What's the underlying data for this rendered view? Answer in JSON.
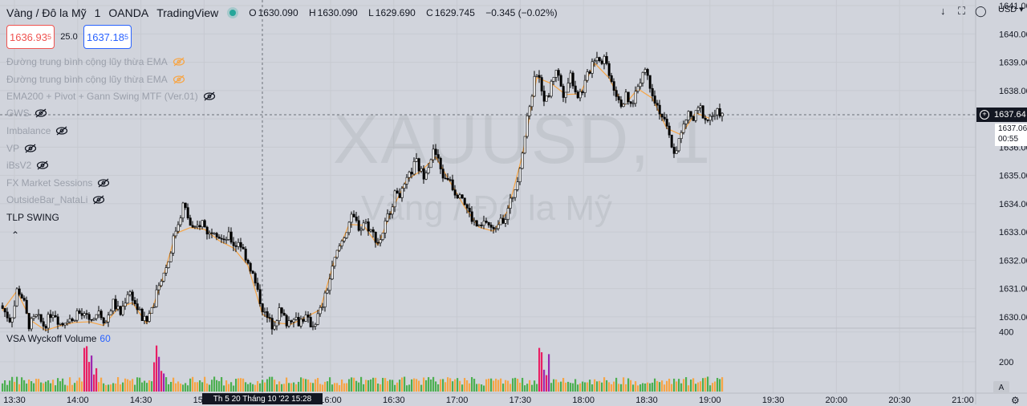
{
  "header": {
    "symbol": "Vàng / Đô la Mỹ",
    "interval": "1",
    "broker": "OANDA",
    "platform": "TradingView",
    "ohlc": {
      "o_label": "O",
      "o": "1630.090",
      "h_label": "H",
      "h": "1630.090",
      "l_label": "L",
      "l": "1629.690",
      "c_label": "C",
      "c": "1629.745",
      "change": "−0.345 (−0.02%)"
    }
  },
  "trade": {
    "sell_main": "1636.93",
    "sell_sup": "5",
    "spread": "25.0",
    "buy_main": "1637.18",
    "buy_sup": "5"
  },
  "indicators": [
    {
      "label": "Đường trung bình cộng lũy thừa EMA",
      "style": "orange-eye"
    },
    {
      "label": "Đường trung bình cộng lũy thừa EMA",
      "style": "orange-eye"
    },
    {
      "label": "EMA200 + Pivot + Gann Swing MTF (Ver.01)",
      "style": "hidden"
    },
    {
      "label": "GWS",
      "style": "hidden"
    },
    {
      "label": "Imbalance",
      "style": "hidden"
    },
    {
      "label": "VP",
      "style": "hidden"
    },
    {
      "label": "iBsV2",
      "style": "hidden"
    },
    {
      "label": "FX Market Sessions",
      "style": "hidden"
    },
    {
      "label": "OutsideBar_NataLi",
      "style": "hidden"
    },
    {
      "label": "TLP SWING",
      "style": "active"
    }
  ],
  "collapse_icon": "chevron-up-icon",
  "watermark": {
    "line1": "XAUUSD, 1",
    "line2": "Vàng / Đô la Mỹ"
  },
  "volume_pane": {
    "name": "VSA Wyckoff Volume",
    "length": "60",
    "axis_labels": [
      "400",
      "200"
    ]
  },
  "price_axis": {
    "currency": "USD",
    "labels": [
      "1641.00",
      "1640.00",
      "1639.00",
      "1638.00",
      "1637.00",
      "1636.00",
      "1635.00",
      "1634.00",
      "1633.00",
      "1632.00",
      "1631.00",
      "1630.00"
    ],
    "crosshair_price": "1637.64",
    "last_price": "1637.06",
    "countdown": "00:55"
  },
  "time_axis": {
    "labels": [
      "13:30",
      "14:00",
      "14:30",
      "15:00",
      "16:00",
      "16:30",
      "17:00",
      "17:30",
      "18:00",
      "18:30",
      "19:00",
      "19:30",
      "20:00",
      "20:30",
      "21:00"
    ],
    "crosshair_time": "Th 5 20 Tháng 10 '22   15:28"
  },
  "autoscale_label": "A",
  "icons": [
    "down-arrow-icon",
    "fullscreen-icon",
    "screenshot-icon",
    "settings-gear-icon",
    "eye-off-icon",
    "live-dot-icon",
    "chevron-up-icon"
  ],
  "colors": {
    "background": "#d1d4dc",
    "up": "#ffffff",
    "down": "#000000",
    "swing": "#f7a545",
    "vol_green": "#4caf50",
    "vol_orange": "#f7a545",
    "vol_purple": "#9c27b0",
    "vol_pink": "#e91e63"
  },
  "chart_data": {
    "type": "candlestick",
    "y_range": [
      1629.6,
      1641.2
    ],
    "volume_range": [
      0,
      420
    ],
    "x_range": [
      "13:30",
      "21:00"
    ],
    "bar_minutes": 1,
    "closes": [
      1630.3,
      1630.1,
      1629.9,
      1630.2,
      1631.0,
      1630.8,
      1630.4,
      1629.7,
      1629.8,
      1630.0,
      1629.9,
      1629.7,
      1629.8,
      1630.1,
      1630.2,
      1629.9,
      1629.7,
      1629.9,
      1630.0,
      1629.8,
      1630.2,
      1630.1,
      1630.0,
      1629.9,
      1629.8,
      1629.9,
      1630.3,
      1630.0,
      1629.8,
      1630.2,
      1630.5,
      1630.3,
      1630.1,
      1630.5,
      1630.9,
      1630.8,
      1630.4,
      1630.2,
      1629.9,
      1629.8,
      1630.2,
      1630.5,
      1630.9,
      1631.2,
      1631.6,
      1632.0,
      1632.6,
      1633.1,
      1633.5,
      1634.0,
      1633.6,
      1633.2,
      1633.0,
      1633.2,
      1633.4,
      1633.1,
      1632.9,
      1633.2,
      1633.0,
      1632.8,
      1632.6,
      1632.9,
      1632.7,
      1632.5,
      1632.7,
      1632.4,
      1632.1,
      1631.8,
      1631.4,
      1630.9,
      1630.5,
      1630.1,
      1629.9,
      1629.7,
      1629.9,
      1630.2,
      1630.0,
      1629.8,
      1629.9,
      1630.1,
      1629.8,
      1629.9,
      1630.0,
      1629.8,
      1629.7,
      1629.9,
      1630.2,
      1630.5,
      1631.0,
      1631.5,
      1632.0,
      1632.4,
      1632.7,
      1633.0,
      1633.4,
      1633.5,
      1633.3,
      1633.1,
      1633.4,
      1633.2,
      1633.0,
      1632.8,
      1632.6,
      1633.0,
      1633.4,
      1633.8,
      1634.2,
      1634.5,
      1634.3,
      1634.6,
      1634.9,
      1635.2,
      1635.5,
      1635.2,
      1635.0,
      1635.3,
      1635.6,
      1635.9,
      1635.5,
      1635.1,
      1634.8,
      1635.0,
      1634.6,
      1634.3,
      1634.5,
      1634.1,
      1633.8,
      1633.5,
      1633.3,
      1633.1,
      1633.2,
      1633.4,
      1633.2,
      1633.0,
      1633.3,
      1633.6,
      1633.4,
      1633.8,
      1634.2,
      1634.6,
      1635.2,
      1636.0,
      1636.8,
      1637.6,
      1638.3,
      1638.8,
      1638.2,
      1637.6,
      1637.9,
      1638.4,
      1638.8,
      1638.3,
      1637.9,
      1638.2,
      1638.6,
      1638.1,
      1637.8,
      1638.0,
      1638.3,
      1638.7,
      1639.1,
      1639.3,
      1639.0,
      1639.2,
      1638.8,
      1638.4,
      1638.0,
      1637.7,
      1637.5,
      1637.8,
      1637.4,
      1637.7,
      1638.1,
      1638.5,
      1638.8,
      1638.4,
      1638.0,
      1637.6,
      1637.3,
      1637.0,
      1636.6,
      1636.2,
      1635.8,
      1636.1,
      1636.5,
      1636.9,
      1637.2,
      1636.9,
      1637.2,
      1637.4,
      1637.1,
      1636.9,
      1637.2,
      1637.0,
      1637.3,
      1637.1
    ]
  }
}
